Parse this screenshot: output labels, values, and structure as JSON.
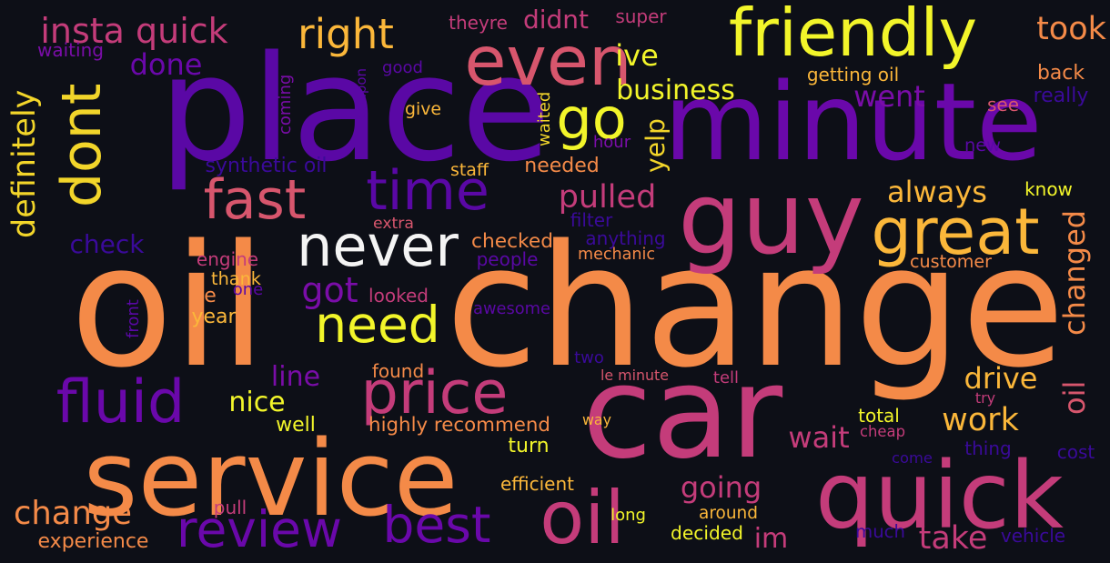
{
  "palette": {
    "background": "#0d0f17",
    "c1": "#f2f52a",
    "c2": "#fbb73a",
    "c3": "#f48a48",
    "c4": "#d7566d",
    "c5": "#b22a86",
    "c6": "#7a0da8",
    "c7": "#5a08a5",
    "c8": "#2d0a8a"
  },
  "words": [
    {
      "text": "oil",
      "color": "#f48a48",
      "rotated": false
    },
    {
      "text": "change",
      "color": "#f48a48",
      "rotated": false
    },
    {
      "text": "car",
      "color": "#c43c7a",
      "rotated": false
    },
    {
      "text": "place",
      "color": "#5a08a5",
      "rotated": false
    },
    {
      "text": "minute",
      "color": "#6a08aa",
      "rotated": false
    },
    {
      "text": "service",
      "color": "#f48a48",
      "rotated": false
    },
    {
      "text": "quick",
      "color": "#c43c7a",
      "rotated": false
    },
    {
      "text": "guy",
      "color": "#c43c7a",
      "rotated": false
    },
    {
      "text": "oil",
      "color": "#c43c7a",
      "rotated": false
    },
    {
      "text": "friendly",
      "color": "#f2f52a",
      "rotated": false
    },
    {
      "text": "even",
      "color": "#d7566d",
      "rotated": false
    },
    {
      "text": "time",
      "color": "#5a08a5",
      "rotated": false
    },
    {
      "text": "fast",
      "color": "#d7566d",
      "rotated": false
    },
    {
      "text": "never",
      "color": "#f4f4f4",
      "rotated": false
    },
    {
      "text": "great",
      "color": "#fbb73a",
      "rotated": false
    },
    {
      "text": "go",
      "color": "#f2f52a",
      "rotated": false
    },
    {
      "text": "dont",
      "color": "#f2d52a",
      "rotated": true
    },
    {
      "text": "fluid",
      "color": "#6a08aa",
      "rotated": false
    },
    {
      "text": "price",
      "color": "#c43c7a",
      "rotated": false
    },
    {
      "text": "review",
      "color": "#6a08aa",
      "rotated": false
    },
    {
      "text": "best",
      "color": "#6a08aa",
      "rotated": false
    },
    {
      "text": "need",
      "color": "#f2f52a",
      "rotated": false
    },
    {
      "text": "right",
      "color": "#fbb73a",
      "rotated": false
    },
    {
      "text": "insta quick",
      "color": "#c43c7a",
      "rotated": false
    },
    {
      "text": "business",
      "color": "#f2f52a",
      "rotated": false
    },
    {
      "text": "pulled",
      "color": "#c43c7a",
      "rotated": false
    },
    {
      "text": "always",
      "color": "#fbb73a",
      "rotated": false
    },
    {
      "text": "went",
      "color": "#7a0da8",
      "rotated": false
    },
    {
      "text": "ive",
      "color": "#f2f52a",
      "rotated": false
    },
    {
      "text": "done",
      "color": "#6a08aa",
      "rotated": false
    },
    {
      "text": "didnt",
      "color": "#c43c7a",
      "rotated": false
    },
    {
      "text": "took",
      "color": "#f48a48",
      "rotated": false
    },
    {
      "text": "got",
      "color": "#7a0da8",
      "rotated": false
    },
    {
      "text": "check",
      "color": "#3a0a9a",
      "rotated": false
    },
    {
      "text": "drive",
      "color": "#fbb73a",
      "rotated": false
    },
    {
      "text": "work",
      "color": "#fbb73a",
      "rotated": false
    },
    {
      "text": "wait",
      "color": "#c43c7a",
      "rotated": false
    },
    {
      "text": "going",
      "color": "#c43c7a",
      "rotated": false
    },
    {
      "text": "nice",
      "color": "#f2f52a",
      "rotated": false
    },
    {
      "text": "line",
      "color": "#7a0da8",
      "rotated": false
    },
    {
      "text": "change",
      "color": "#f48a48",
      "rotated": false
    },
    {
      "text": "take",
      "color": "#c43c7a",
      "rotated": false
    },
    {
      "text": "im",
      "color": "#c43c7a",
      "rotated": false
    },
    {
      "text": "definitely",
      "color": "#f2d52a",
      "rotated": true
    },
    {
      "text": "changed",
      "color": "#f48a48",
      "rotated": true
    },
    {
      "text": "oil",
      "color": "#d7566d",
      "rotated": true
    },
    {
      "text": "yelp",
      "color": "#f2d52a",
      "rotated": true
    },
    {
      "text": "waited",
      "color": "#f2d52a",
      "rotated": true
    },
    {
      "text": "coming",
      "color": "#7a0da8",
      "rotated": true
    },
    {
      "text": "coupon",
      "color": "#5a08a5",
      "rotated": true
    },
    {
      "text": "front",
      "color": "#5a08a5",
      "rotated": true
    },
    {
      "text": "super",
      "color": "#c43c7a",
      "rotated": false
    },
    {
      "text": "theyre",
      "color": "#c43c7a",
      "rotated": false
    },
    {
      "text": "waiting",
      "color": "#7a0da8",
      "rotated": false
    },
    {
      "text": "good",
      "color": "#5a08a5",
      "rotated": false
    },
    {
      "text": "getting oil",
      "color": "#fbb73a",
      "rotated": false
    },
    {
      "text": "back",
      "color": "#f48a48",
      "rotated": false
    },
    {
      "text": "see",
      "color": "#d7566d",
      "rotated": false
    },
    {
      "text": "really",
      "color": "#3a0a9a",
      "rotated": false
    },
    {
      "text": "give",
      "color": "#fbb73a",
      "rotated": false
    },
    {
      "text": "hour",
      "color": "#7a0da8",
      "rotated": false
    },
    {
      "text": "new",
      "color": "#5a08a5",
      "rotated": false
    },
    {
      "text": "synthetic oil",
      "color": "#3a0a9a",
      "rotated": false
    },
    {
      "text": "staff",
      "color": "#fbb73a",
      "rotated": false
    },
    {
      "text": "needed",
      "color": "#f48a48",
      "rotated": false
    },
    {
      "text": "know",
      "color": "#f2f52a",
      "rotated": false
    },
    {
      "text": "filter",
      "color": "#3a0a9a",
      "rotated": false
    },
    {
      "text": "extra",
      "color": "#d7566d",
      "rotated": false
    },
    {
      "text": "anything",
      "color": "#3a0a9a",
      "rotated": false
    },
    {
      "text": "checked",
      "color": "#f48a48",
      "rotated": false
    },
    {
      "text": "engine",
      "color": "#c43c7a",
      "rotated": false
    },
    {
      "text": "people",
      "color": "#5a08a5",
      "rotated": false
    },
    {
      "text": "mechanic",
      "color": "#f48a48",
      "rotated": false
    },
    {
      "text": "customer",
      "color": "#f48a48",
      "rotated": false
    },
    {
      "text": "thank",
      "color": "#fbb73a",
      "rotated": false
    },
    {
      "text": "looked",
      "color": "#c43c7a",
      "rotated": false
    },
    {
      "text": "le",
      "color": "#f48a48",
      "rotated": false
    },
    {
      "text": "one",
      "color": "#5a08a5",
      "rotated": false
    },
    {
      "text": "awesome",
      "color": "#5a08a5",
      "rotated": false
    },
    {
      "text": "year",
      "color": "#fbb73a",
      "rotated": false
    },
    {
      "text": "two",
      "color": "#3a0a9a",
      "rotated": false
    },
    {
      "text": "found",
      "color": "#f48a48",
      "rotated": false
    },
    {
      "text": "le minute",
      "color": "#d7566d",
      "rotated": false
    },
    {
      "text": "tell",
      "color": "#c43c7a",
      "rotated": false
    },
    {
      "text": "try",
      "color": "#c43c7a",
      "rotated": false
    },
    {
      "text": "well",
      "color": "#f2f52a",
      "rotated": false
    },
    {
      "text": "highly recommend",
      "color": "#f48a48",
      "rotated": false
    },
    {
      "text": "way",
      "color": "#fbb73a",
      "rotated": false
    },
    {
      "text": "total",
      "color": "#f2f52a",
      "rotated": false
    },
    {
      "text": "cheap",
      "color": "#c43c7a",
      "rotated": false
    },
    {
      "text": "turn",
      "color": "#f2f52a",
      "rotated": false
    },
    {
      "text": "thing",
      "color": "#3a0a9a",
      "rotated": false
    },
    {
      "text": "come",
      "color": "#3a0a9a",
      "rotated": false
    },
    {
      "text": "cost",
      "color": "#3a0a9a",
      "rotated": false
    },
    {
      "text": "efficient",
      "color": "#fbb73a",
      "rotated": false
    },
    {
      "text": "pull",
      "color": "#c43c7a",
      "rotated": false
    },
    {
      "text": "long",
      "color": "#f2f52a",
      "rotated": false
    },
    {
      "text": "around",
      "color": "#fbb73a",
      "rotated": false
    },
    {
      "text": "decided",
      "color": "#f2f52a",
      "rotated": false
    },
    {
      "text": "much",
      "color": "#3a0a9a",
      "rotated": false
    },
    {
      "text": "vehicle",
      "color": "#3a0a9a",
      "rotated": false
    },
    {
      "text": "experience",
      "color": "#f48a48",
      "rotated": false
    }
  ]
}
